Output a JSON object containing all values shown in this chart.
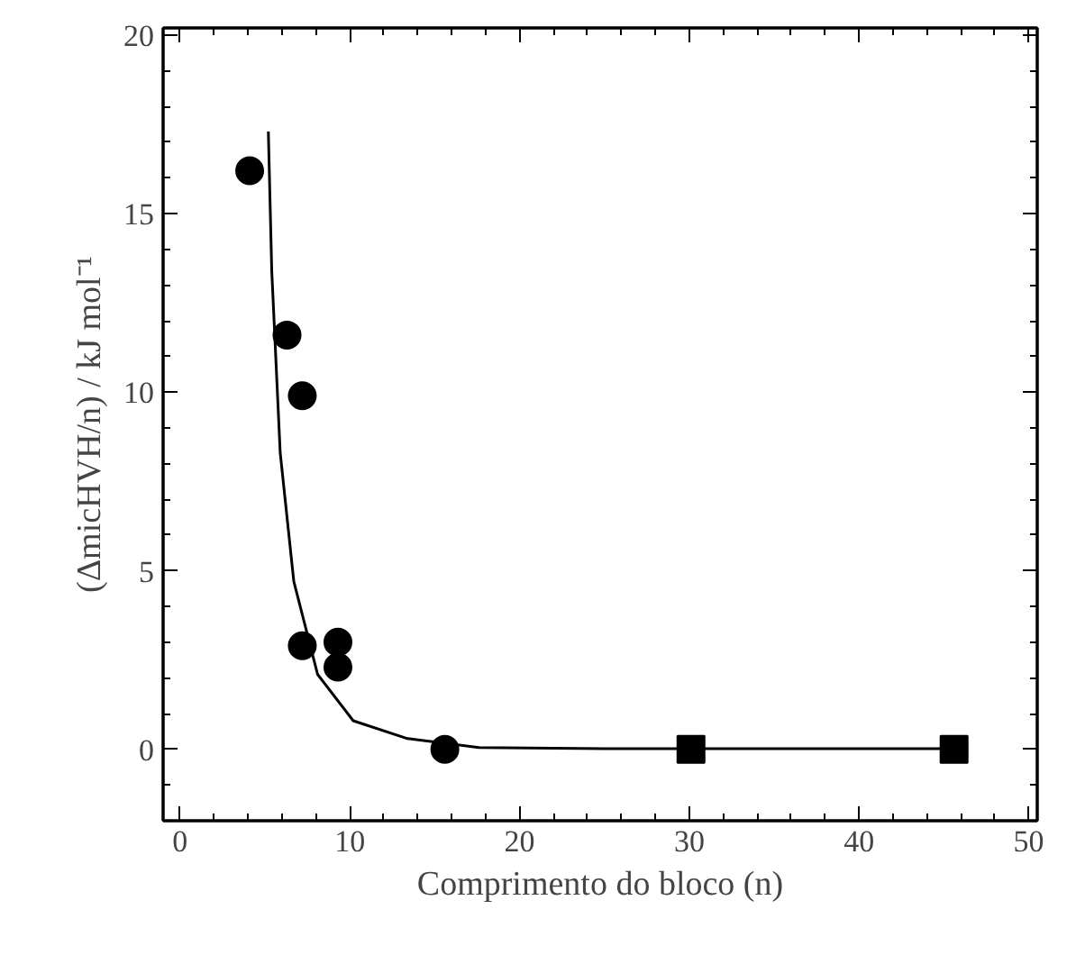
{
  "chart_data": {
    "type": "scatter",
    "xlabel": "Comprimento do bloco (n)",
    "ylabel": "(ΔmicHVH/n) / kJ mol⁻¹",
    "xlim": [
      -1,
      50.5
    ],
    "ylim": [
      -2,
      20.2
    ],
    "xticks": [
      0,
      10,
      20,
      30,
      40,
      50
    ],
    "yticks": [
      0,
      5,
      10,
      15,
      20
    ],
    "grid": false,
    "series": [
      {
        "type": "line",
        "color": "#000000",
        "marker": "none",
        "line_style": "solid",
        "x": [
          5.2,
          5.4,
          5.9,
          6.7,
          8.1,
          10.2,
          13.4,
          17.6,
          25,
          35,
          45.6
        ],
        "values": [
          17.3,
          13.4,
          8.3,
          4.7,
          2.1,
          0.8,
          0.3,
          0.05,
          0.02,
          0.02,
          0.02
        ]
      },
      {
        "color": "#000000",
        "marker": "circle",
        "x": [
          4.1,
          6.3,
          7.2,
          7.2,
          9.3,
          9.3,
          15.6
        ],
        "values": [
          16.2,
          11.6,
          9.9,
          2.9,
          3.0,
          2.3,
          0
        ]
      },
      {
        "color": "#000000",
        "marker": "square",
        "x": [
          30.1,
          45.6
        ],
        "values": [
          0,
          0
        ]
      }
    ]
  }
}
